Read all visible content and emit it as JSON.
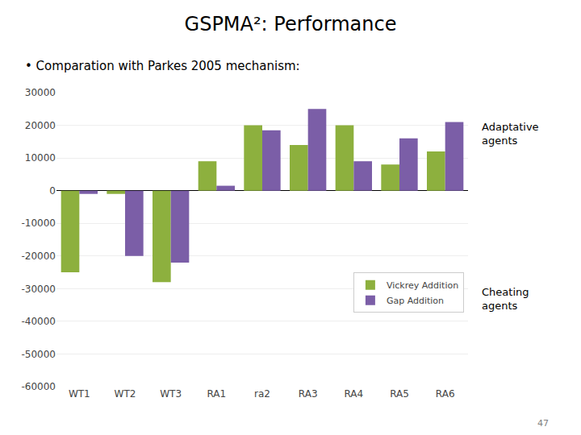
{
  "chart_data": {
    "type": "bar",
    "title": "GSPMA²: Performance",
    "subtitle": "• Comparation with Parkes 2005 mechanism:",
    "categories": [
      "WT1",
      "WT2",
      "WT3",
      "RA1",
      "ra2",
      "RA3",
      "RA4",
      "RA5",
      "RA6"
    ],
    "series": [
      {
        "name": "Vickrey Addition",
        "color": "#8db03e",
        "values": [
          -25000,
          -1000,
          -28000,
          9000,
          20000,
          14000,
          20000,
          8000,
          12000
        ]
      },
      {
        "name": "Gap Addition",
        "color": "#7b5ea7",
        "values": [
          -1000,
          -20000,
          -22000,
          1500,
          18500,
          25000,
          9000,
          16000,
          21000
        ]
      }
    ],
    "ylim": [
      -60000,
      30000
    ],
    "yticks": [
      -60000,
      -50000,
      -40000,
      -30000,
      -20000,
      -10000,
      0,
      10000,
      20000,
      30000
    ],
    "grid": true,
    "legend": "lower right",
    "annotations": [
      "Adaptative\nagents",
      "Cheating\nagents",
      "47"
    ]
  }
}
